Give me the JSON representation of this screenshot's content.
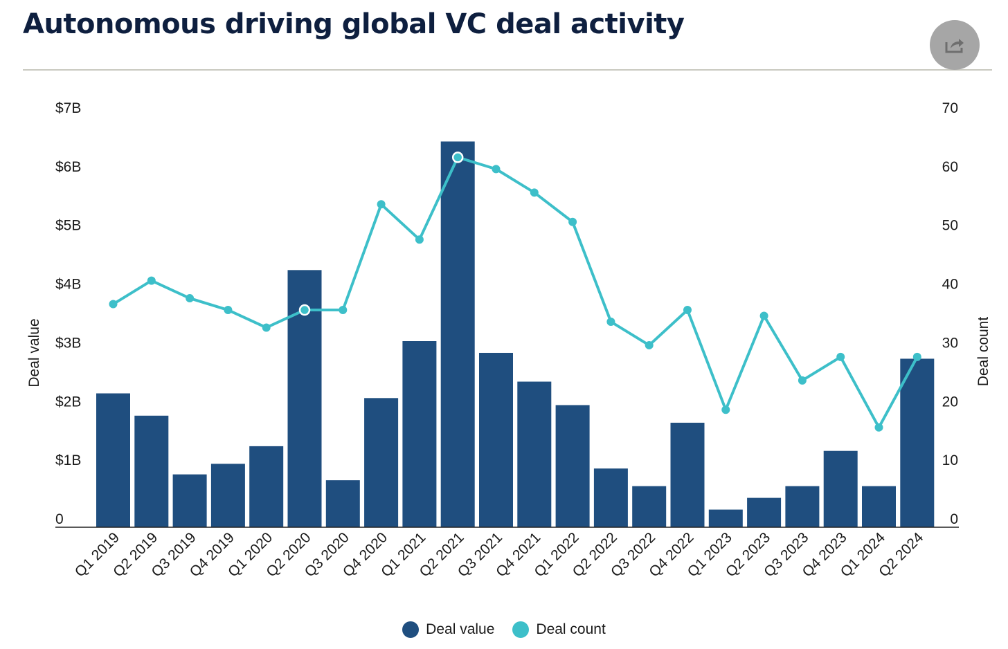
{
  "header": {
    "title": "Autonomous driving global VC deal activity",
    "share_icon": "share-icon"
  },
  "colors": {
    "bar": "#1f4e7f",
    "line": "#3dbfc9",
    "baseline": "#222222",
    "title": "#0e1f3f"
  },
  "chart_data": {
    "type": "bar",
    "categories": [
      "Q1 2019",
      "Q2 2019",
      "Q3 2019",
      "Q4 2019",
      "Q1 2020",
      "Q2 2020",
      "Q3 2020",
      "Q4 2020",
      "Q1 2021",
      "Q2 2021",
      "Q3 2021",
      "Q4 2021",
      "Q1 2022",
      "Q2 2022",
      "Q3 2022",
      "Q4 2022",
      "Q1 2023",
      "Q2 2023",
      "Q3 2023",
      "Q4 2023",
      "Q1 2024",
      "Q2 2024"
    ],
    "series": [
      {
        "name": "Deal value",
        "type": "bar",
        "axis": "left",
        "values": [
          2.28,
          1.9,
          0.9,
          1.08,
          1.38,
          4.38,
          0.8,
          2.2,
          3.17,
          6.57,
          2.97,
          2.48,
          2.08,
          1.0,
          0.7,
          1.78,
          0.3,
          0.5,
          0.7,
          1.3,
          0.7,
          2.87
        ]
      },
      {
        "name": "Deal count",
        "type": "line",
        "axis": "right",
        "values": [
          38,
          42,
          39,
          37,
          34,
          37,
          37,
          55,
          49,
          63,
          61,
          57,
          52,
          35,
          31,
          37,
          20,
          36,
          25,
          29,
          17,
          29
        ]
      }
    ],
    "y_left": {
      "label": "Deal value",
      "ticks": [
        "0",
        "$1B",
        "$2B",
        "$3B",
        "$4B",
        "$5B",
        "$6B",
        "$7B"
      ],
      "ylim": [
        0,
        7
      ]
    },
    "y_right": {
      "label": "Deal count",
      "ticks": [
        "0",
        "10",
        "20",
        "30",
        "40",
        "50",
        "60",
        "70"
      ],
      "ylim": [
        0,
        70
      ]
    },
    "legend": {
      "position": "bottom-center",
      "entries": [
        "Deal value",
        "Deal count"
      ]
    },
    "grid": false
  }
}
